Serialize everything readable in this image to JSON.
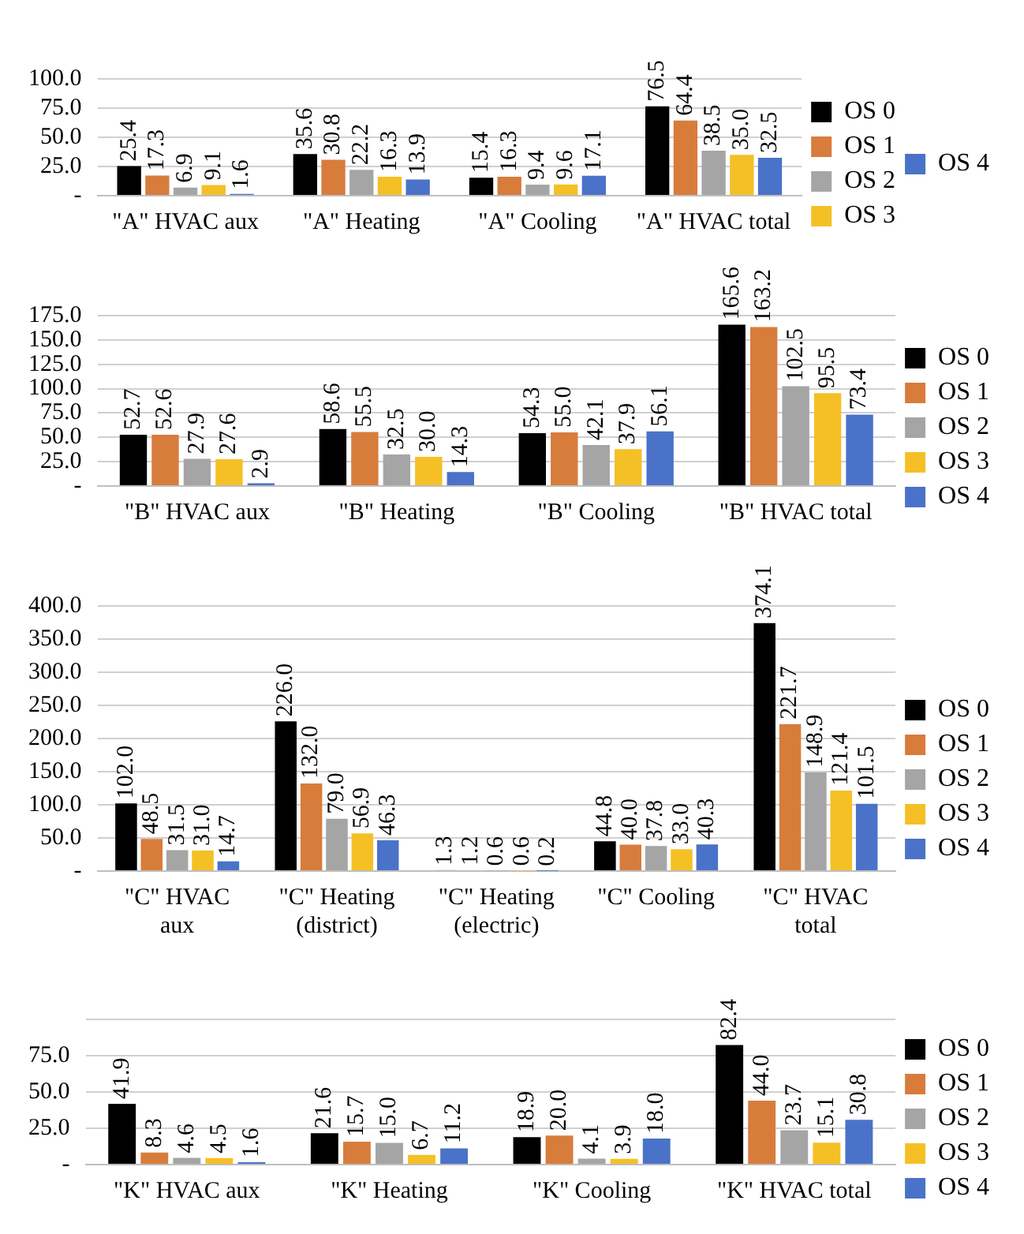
{
  "chart_data": [
    {
      "type": "bar",
      "categories": [
        "\"A\" HVAC aux",
        "\"A\" Heating",
        "\"A\" Cooling",
        "\"A\" HVAC total"
      ],
      "series": [
        {
          "name": "OS 0",
          "color": "#000000",
          "values": [
            25.4,
            35.6,
            15.4,
            76.5
          ],
          "value_labels": [
            "25.4",
            "35.6",
            "15.4",
            "76.5"
          ]
        },
        {
          "name": "OS 1",
          "color": "#d87c3c",
          "values": [
            17.3,
            30.8,
            16.3,
            64.4
          ],
          "value_labels": [
            "17.3",
            "30.8",
            "16.3",
            "64.4"
          ]
        },
        {
          "name": "OS 2",
          "color": "#a5a5a5",
          "values": [
            6.9,
            22.2,
            9.4,
            38.5
          ],
          "value_labels": [
            "6.9",
            "22.2",
            "9.4",
            "38.5"
          ]
        },
        {
          "name": "OS 3",
          "color": "#f5c026",
          "values": [
            9.1,
            16.3,
            9.6,
            35.0
          ],
          "value_labels": [
            "9.1",
            "16.3",
            "9.6",
            "35.0"
          ]
        },
        {
          "name": "OS 4",
          "color": "#4a72c8",
          "values": [
            1.6,
            13.9,
            17.1,
            32.5
          ],
          "value_labels": [
            "1.6",
            "13.9",
            "17.1",
            "32.5"
          ]
        }
      ],
      "ylim": [
        0,
        100
      ],
      "yticks": [
        {
          "value": 0,
          "label": "-"
        },
        {
          "value": 25,
          "label": "25.0"
        },
        {
          "value": 50,
          "label": "50.0"
        },
        {
          "value": 75,
          "label": "75.0"
        },
        {
          "value": 100,
          "label": "100.0"
        }
      ],
      "grid": "y",
      "legend": "right"
    },
    {
      "type": "bar",
      "categories": [
        "\"B\" HVAC aux",
        "\"B\" Heating",
        "\"B\" Cooling",
        "\"B\" HVAC total"
      ],
      "series": [
        {
          "name": "OS 0",
          "color": "#000000",
          "values": [
            52.7,
            58.6,
            54.3,
            165.6
          ],
          "value_labels": [
            "52.7",
            "58.6",
            "54.3",
            "165.6"
          ]
        },
        {
          "name": "OS 1",
          "color": "#d87c3c",
          "values": [
            52.6,
            55.5,
            55.0,
            163.2
          ],
          "value_labels": [
            "52.6",
            "55.5",
            "55.0",
            "163.2"
          ]
        },
        {
          "name": "OS 2",
          "color": "#a5a5a5",
          "values": [
            27.9,
            32.5,
            42.1,
            102.5
          ],
          "value_labels": [
            "27.9",
            "32.5",
            "42.1",
            "102.5"
          ]
        },
        {
          "name": "OS 3",
          "color": "#f5c026",
          "values": [
            27.6,
            30.0,
            37.9,
            95.5
          ],
          "value_labels": [
            "27.6",
            "30.0",
            "37.9",
            "95.5"
          ]
        },
        {
          "name": "OS 4",
          "color": "#4a72c8",
          "values": [
            2.9,
            14.3,
            56.1,
            73.4
          ],
          "value_labels": [
            "2.9",
            "14.3",
            "56.1",
            "73.4"
          ]
        }
      ],
      "ylim": [
        0,
        175
      ],
      "yticks": [
        {
          "value": 0,
          "label": "-"
        },
        {
          "value": 25,
          "label": "25.0"
        },
        {
          "value": 50,
          "label": "50.0"
        },
        {
          "value": 75,
          "label": "75.0"
        },
        {
          "value": 100,
          "label": "100.0"
        },
        {
          "value": 125,
          "label": "125.0"
        },
        {
          "value": 150,
          "label": "150.0"
        },
        {
          "value": 175,
          "label": "175.0"
        }
      ],
      "grid": "y",
      "legend": "right"
    },
    {
      "type": "bar",
      "categories": [
        "\"C\" HVAC aux",
        "\"C\" Heating (district)",
        "\"C\" Heating (electric)",
        "\"C\" Cooling",
        "\"C\" HVAC total"
      ],
      "series": [
        {
          "name": "OS 0",
          "color": "#000000",
          "values": [
            102.0,
            226.0,
            1.3,
            44.8,
            374.1
          ],
          "value_labels": [
            "102.0",
            "226.0",
            "1.3",
            "44.8",
            "374.1"
          ]
        },
        {
          "name": "OS 1",
          "color": "#d87c3c",
          "values": [
            48.5,
            132.0,
            1.2,
            40.0,
            221.7
          ],
          "value_labels": [
            "48.5",
            "132.0",
            "1.2",
            "40.0",
            "221.7"
          ]
        },
        {
          "name": "OS 2",
          "color": "#a5a5a5",
          "values": [
            31.5,
            79.0,
            0.6,
            37.8,
            148.9
          ],
          "value_labels": [
            "31.5",
            "79.0",
            "0.6",
            "37.8",
            "148.9"
          ]
        },
        {
          "name": "OS 3",
          "color": "#f5c026",
          "values": [
            31.0,
            56.9,
            0.6,
            33.0,
            121.4
          ],
          "value_labels": [
            "31.0",
            "56.9",
            "0.6",
            "33.0",
            "121.4"
          ]
        },
        {
          "name": "OS 4",
          "color": "#4a72c8",
          "values": [
            14.7,
            46.3,
            0.2,
            40.3,
            101.5
          ],
          "value_labels": [
            "14.7",
            "46.3",
            "0.2",
            "40.3",
            "101.5"
          ]
        }
      ],
      "ylim": [
        0,
        400
      ],
      "yticks": [
        {
          "value": 0,
          "label": "-"
        },
        {
          "value": 50,
          "label": "50.0"
        },
        {
          "value": 100,
          "label": "100.0"
        },
        {
          "value": 150,
          "label": "150.0"
        },
        {
          "value": 200,
          "label": "200.0"
        },
        {
          "value": 250,
          "label": "250.0"
        },
        {
          "value": 300,
          "label": "300.0"
        },
        {
          "value": 350,
          "label": "350.0"
        },
        {
          "value": 400,
          "label": "400.0"
        }
      ],
      "grid": "y",
      "legend": "right"
    },
    {
      "type": "bar",
      "categories": [
        "\"K\" HVAC aux",
        "\"K\" Heating",
        "\"K\" Cooling",
        "\"K\" HVAC total"
      ],
      "series": [
        {
          "name": "OS 0",
          "color": "#000000",
          "values": [
            41.9,
            21.6,
            18.9,
            82.4
          ],
          "value_labels": [
            "41.9",
            "21.6",
            "18.9",
            "82.4"
          ]
        },
        {
          "name": "OS 1",
          "color": "#d87c3c",
          "values": [
            8.3,
            15.7,
            20.0,
            44.0
          ],
          "value_labels": [
            "8.3",
            "15.7",
            "20.0",
            "44.0"
          ]
        },
        {
          "name": "OS 2",
          "color": "#a5a5a5",
          "values": [
            4.6,
            15.0,
            4.1,
            23.7
          ],
          "value_labels": [
            "4.6",
            "15.0",
            "4.1",
            "23.7"
          ]
        },
        {
          "name": "OS 3",
          "color": "#f5c026",
          "values": [
            4.5,
            6.7,
            3.9,
            15.1
          ],
          "value_labels": [
            "4.5",
            "6.7",
            "3.9",
            "15.1"
          ]
        },
        {
          "name": "OS 4",
          "color": "#4a72c8",
          "values": [
            1.6,
            11.2,
            18.0,
            30.8
          ],
          "value_labels": [
            "1.6",
            "11.2",
            "18.0",
            "30.8"
          ]
        }
      ],
      "ylim": [
        0,
        100
      ],
      "yticks": [
        {
          "value": 0,
          "label": "-"
        },
        {
          "value": 25,
          "label": "25.0"
        },
        {
          "value": 50,
          "label": "50.0"
        },
        {
          "value": 75,
          "label": "75.0"
        },
        {
          "value": 100,
          "label": null
        }
      ],
      "grid": "y",
      "legend": "right"
    }
  ]
}
